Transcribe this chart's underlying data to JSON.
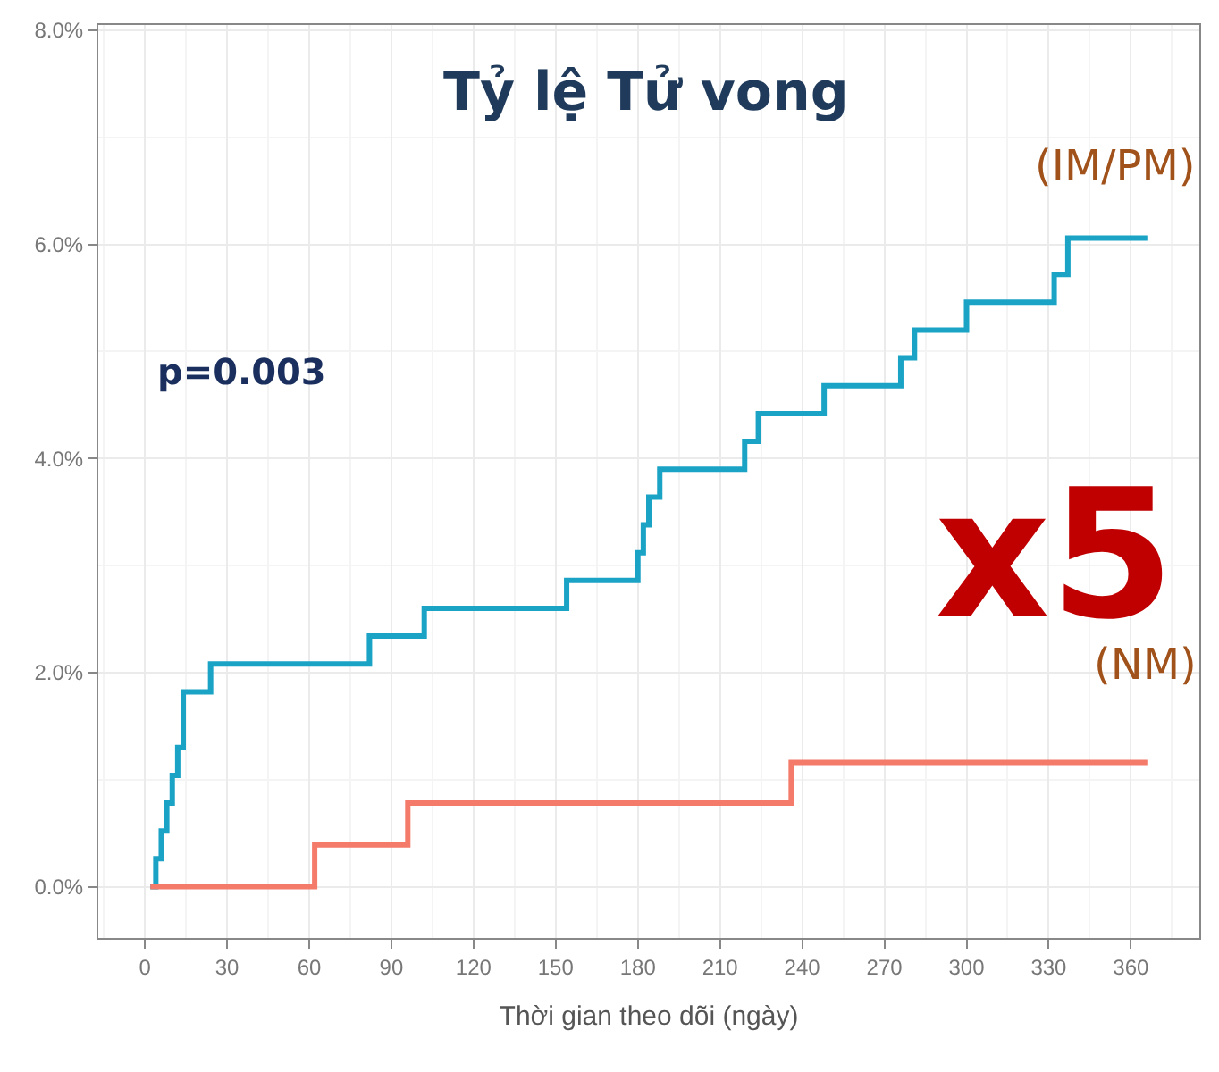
{
  "chart_data": {
    "type": "step",
    "title": "Tỷ lệ Tử vong",
    "xlabel": "Thời gian theo dõi (ngày)",
    "series": [
      {
        "name": "(IM/PM)",
        "color": "#1ba3c6",
        "x": [
          2,
          4,
          6,
          8,
          10,
          12,
          14,
          24,
          82,
          102,
          154,
          180,
          182,
          184,
          188,
          219,
          224,
          248,
          276,
          281,
          300,
          332,
          337,
          366
        ],
        "values": [
          0,
          0.26,
          0.52,
          0.78,
          1.04,
          1.3,
          1.82,
          2.08,
          2.34,
          2.6,
          2.86,
          3.12,
          3.38,
          3.64,
          3.9,
          4.16,
          4.42,
          4.68,
          4.94,
          5.2,
          5.46,
          5.72,
          6.06,
          6.06
        ]
      },
      {
        "name": "(NM)",
        "color": "#f47a6a",
        "x": [
          2,
          62,
          96,
          236,
          366
        ],
        "values": [
          0,
          0.39,
          0.78,
          1.16,
          1.16
        ]
      }
    ],
    "annotations": [
      "p=0.003",
      "x5"
    ],
    "xlim": [
      -17,
      385
    ],
    "ylim": [
      -0.48,
      8.05
    ],
    "xticks": [
      0,
      30,
      60,
      90,
      120,
      150,
      180,
      210,
      240,
      270,
      300,
      330,
      360
    ],
    "yticks": [
      {
        "value": 0,
        "label": "0.0%"
      },
      {
        "value": 2,
        "label": "2.0%"
      },
      {
        "value": 4,
        "label": "4.0%"
      },
      {
        "value": 6,
        "label": "6.0%"
      },
      {
        "value": 8,
        "label": "8.0%"
      }
    ],
    "grid": true,
    "legend": false,
    "marker": "none",
    "line_style": "solid"
  }
}
